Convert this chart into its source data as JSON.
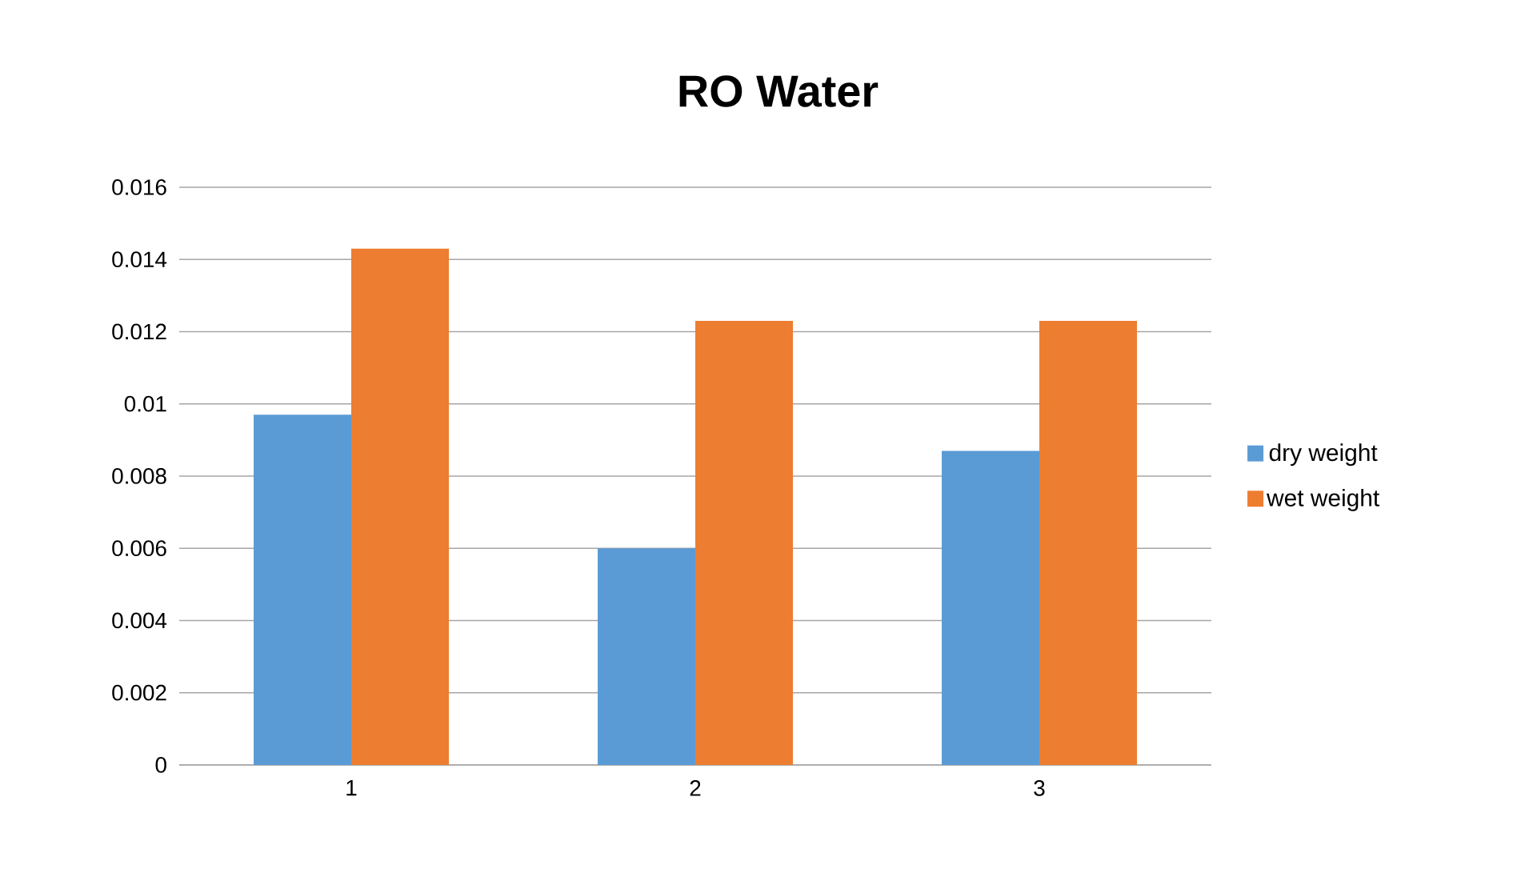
{
  "chart_data": {
    "type": "bar",
    "title": "RO Water",
    "categories": [
      "1",
      "2",
      "3"
    ],
    "series": [
      {
        "name": "dry weight",
        "color": "#5b9bd5",
        "values": [
          0.0097,
          0.006,
          0.0087
        ]
      },
      {
        "name": "wet weight",
        "color": "#ed7d31",
        "values": [
          0.0143,
          0.0123,
          0.0123
        ]
      }
    ],
    "ylim": [
      0,
      0.016
    ],
    "yticks": [
      0,
      0.002,
      0.004,
      0.006,
      0.008,
      0.01,
      0.012,
      0.014,
      0.016
    ],
    "grid": "y",
    "legend": "right"
  }
}
